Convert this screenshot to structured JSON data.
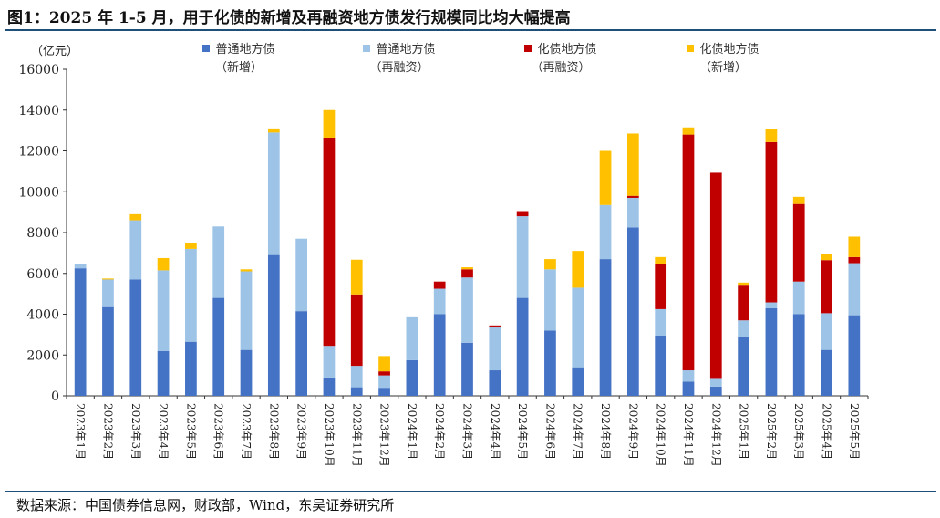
{
  "title": "图1：2025 年 1-5 月，用于化债的新增及再融资地方债发行规模同比均大幅提高",
  "source": "数据来源：中国债券信息网，财政部，Wind，东吴证券研究所",
  "colors": {
    "general_new": "#4472c4",
    "general_refi": "#9dc3e6",
    "debt_refi": "#c00000",
    "debt_new": "#ffc000"
  },
  "chart_data": {
    "type": "bar",
    "stacked": true,
    "unit": "（亿元）",
    "ylim": [
      0,
      16000
    ],
    "yticks": [
      "0",
      "2000",
      "4000",
      "6000",
      "8000",
      "10000",
      "12000",
      "14000",
      "16000"
    ],
    "grid": false,
    "legend_position": "top",
    "categories": [
      "2023年1月",
      "2023年2月",
      "2023年3月",
      "2023年4月",
      "2023年5月",
      "2023年6月",
      "2023年7月",
      "2023年8月",
      "2023年9月",
      "2023年10月",
      "2023年11月",
      "2023年12月",
      "2024年1月",
      "2024年2月",
      "2024年3月",
      "2024年4月",
      "2024年5月",
      "2024年6月",
      "2024年7月",
      "2024年8月",
      "2024年9月",
      "2024年10月",
      "2024年11月",
      "2024年12月",
      "2025年1月",
      "2025年2月",
      "2025年3月",
      "2025年4月",
      "2025年5月"
    ],
    "series": [
      {
        "name": "普通地方债",
        "name_line2": "（新增）",
        "color_key": "general_new",
        "values": [
          6250,
          4350,
          5700,
          2200,
          2650,
          4800,
          2250,
          6900,
          4150,
          900,
          420,
          350,
          1750,
          4000,
          2600,
          1250,
          4800,
          3200,
          1400,
          6700,
          8250,
          2950,
          700,
          450,
          2900,
          4300,
          4000,
          2250,
          3950
        ]
      },
      {
        "name": "普通地方债",
        "name_line2": "（再融资）",
        "color_key": "general_refi",
        "values": [
          200,
          1350,
          2900,
          3950,
          4550,
          3500,
          3850,
          6000,
          3550,
          1550,
          1050,
          650,
          2100,
          1250,
          3200,
          2100,
          4000,
          3000,
          3900,
          2650,
          1450,
          1300,
          550,
          380,
          800,
          280,
          1600,
          1800,
          2550
        ]
      },
      {
        "name": "化债地方债",
        "name_line2": "（再融资）",
        "color_key": "debt_refi",
        "values": [
          0,
          0,
          0,
          0,
          0,
          0,
          0,
          0,
          0,
          10200,
          3500,
          200,
          0,
          350,
          400,
          100,
          250,
          0,
          0,
          0,
          100,
          2200,
          11550,
          10100,
          1700,
          7850,
          3800,
          2600,
          300
        ]
      },
      {
        "name": "化债地方债",
        "name_line2": "（新增）",
        "color_key": "debt_new",
        "values": [
          0,
          50,
          300,
          600,
          300,
          0,
          100,
          200,
          0,
          1350,
          1700,
          750,
          0,
          0,
          100,
          0,
          0,
          500,
          1800,
          2650,
          3050,
          350,
          350,
          0,
          150,
          650,
          350,
          300,
          1000
        ]
      }
    ]
  }
}
